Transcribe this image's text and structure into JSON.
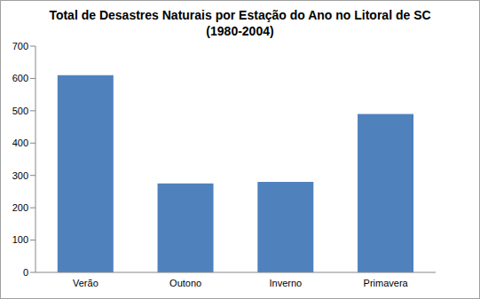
{
  "chart_data": {
    "type": "bar",
    "title": "Total de Desastres Naturais por Estação do Ano no Litoral de SC\n(1980-2004)",
    "categories": [
      "Verão",
      "Outono",
      "Inverno",
      "Primavera"
    ],
    "values": [
      610,
      275,
      280,
      490
    ],
    "color": "#4f81bd",
    "ylim": [
      0,
      700
    ],
    "yticks": [
      0,
      100,
      200,
      300,
      400,
      500,
      600,
      700
    ],
    "grid": false
  }
}
